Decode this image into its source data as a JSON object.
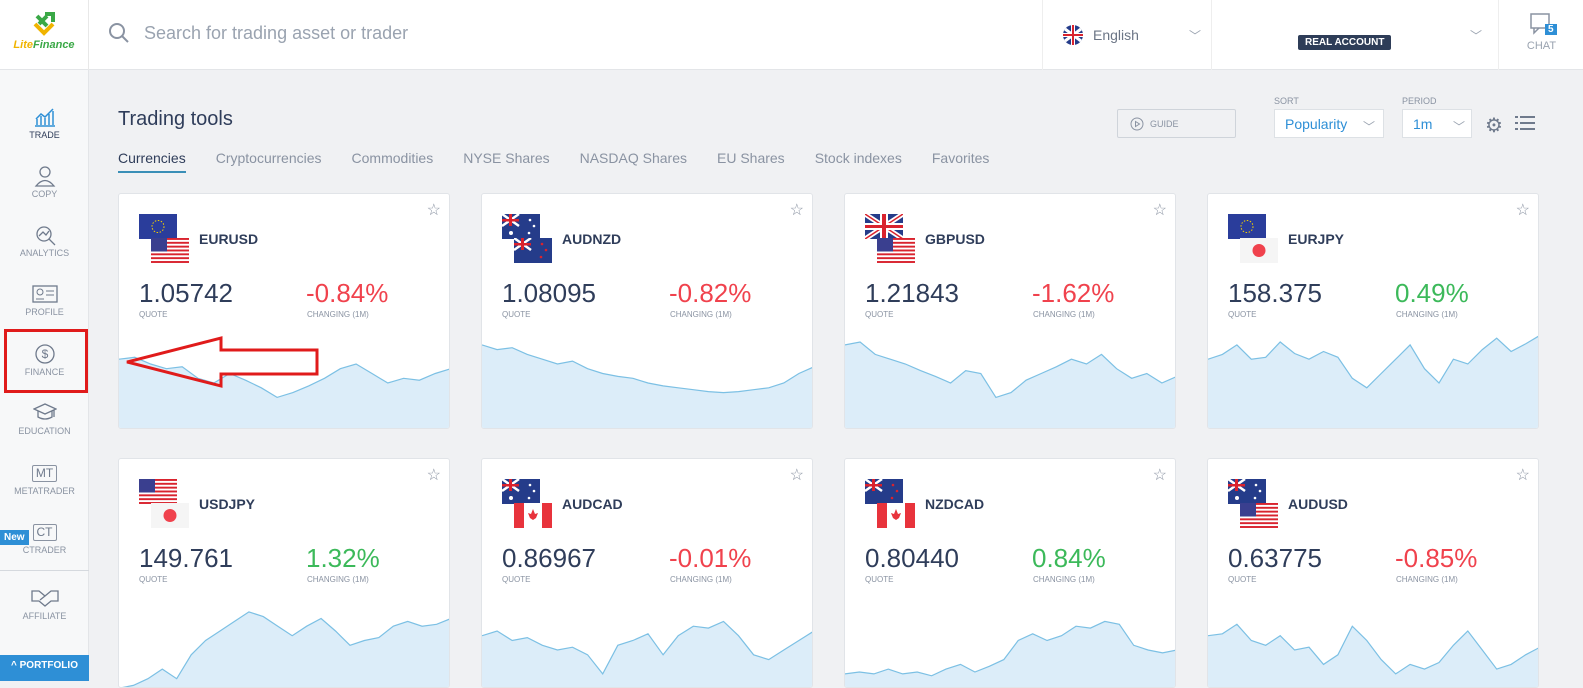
{
  "header": {
    "logo": "LiteFinance",
    "search_placeholder": "Search for trading asset or trader",
    "language": "English",
    "account_badge": "REAL ACCOUNT",
    "chat_label": "CHAT",
    "chat_count": "5"
  },
  "sidebar": {
    "items": [
      {
        "label": "TRADE",
        "icon": "chart-icon",
        "active": true
      },
      {
        "label": "COPY",
        "icon": "user-icon"
      },
      {
        "label": "ANALYTICS",
        "icon": "analytics-icon"
      },
      {
        "label": "PROFILE",
        "icon": "id-card-icon"
      },
      {
        "label": "FINANCE",
        "icon": "dollar-icon"
      },
      {
        "label": "EDUCATION",
        "icon": "graduation-cap-icon"
      },
      {
        "label": "METATRADER",
        "icon": "MT"
      },
      {
        "label": "CTRADER",
        "icon": "CT",
        "badge": "New"
      },
      {
        "label": "AFFILIATE",
        "icon": "handshake-icon"
      }
    ],
    "portfolio": "PORTFOLIO"
  },
  "main": {
    "title": "Trading tools",
    "tabs": [
      "Currencies",
      "Cryptocurrencies",
      "Commodities",
      "NYSE Shares",
      "NASDAQ Shares",
      "EU Shares",
      "Stock indexes",
      "Favorites"
    ],
    "guide": "GUIDE",
    "sort_label": "SORT",
    "sort_value": "Popularity",
    "period_label": "PERIOD",
    "period_value": "1m",
    "quote_label": "QUOTE",
    "change_label": "CHANGING (1M)"
  },
  "colors": {
    "up": "#3cb95a",
    "down": "#f0424d",
    "accent": "#2e8fd6",
    "highlight": "#e01b1b"
  },
  "cards": [
    {
      "symbol": "EURUSD",
      "quote": "1.05742",
      "change": "-0.84%",
      "dir": "down",
      "flags": [
        "eu",
        "us"
      ],
      "spark": [
        70,
        72,
        65,
        60,
        62,
        50,
        45,
        55,
        48,
        40,
        30,
        35,
        42,
        50,
        60,
        65,
        55,
        45,
        50,
        48,
        55,
        60
      ]
    },
    {
      "symbol": "AUDNZD",
      "quote": "1.08095",
      "change": "-0.82%",
      "dir": "down",
      "flags": [
        "au",
        "nz"
      ],
      "spark": [
        85,
        80,
        82,
        75,
        70,
        65,
        68,
        60,
        55,
        52,
        50,
        45,
        42,
        40,
        38,
        36,
        35,
        36,
        38,
        40,
        45,
        55,
        62
      ]
    },
    {
      "symbol": "GBPUSD",
      "quote": "1.21843",
      "change": "-1.62%",
      "dir": "down",
      "flags": [
        "gb",
        "us"
      ],
      "spark": [
        85,
        88,
        75,
        70,
        65,
        58,
        52,
        45,
        58,
        55,
        30,
        35,
        48,
        55,
        62,
        70,
        65,
        75,
        60,
        50,
        55,
        45,
        52
      ]
    },
    {
      "symbol": "EURJPY",
      "quote": "158.375",
      "change": "0.49%",
      "dir": "up",
      "flags": [
        "eu",
        "jp"
      ],
      "spark": [
        70,
        75,
        85,
        70,
        72,
        88,
        76,
        70,
        78,
        72,
        50,
        40,
        55,
        70,
        85,
        60,
        45,
        70,
        65,
        80,
        92,
        78,
        86,
        95
      ]
    },
    {
      "symbol": "USDJPY",
      "quote": "149.761",
      "change": "1.32%",
      "dir": "up",
      "flags": [
        "us",
        "jp"
      ],
      "spark": [
        5,
        8,
        15,
        25,
        15,
        40,
        55,
        65,
        75,
        85,
        80,
        70,
        60,
        70,
        78,
        65,
        50,
        55,
        58,
        70,
        75,
        70,
        72,
        78
      ]
    },
    {
      "symbol": "AUDCAD",
      "quote": "0.86967",
      "change": "-0.01%",
      "dir": "down",
      "flags": [
        "au",
        "ca"
      ],
      "spark": [
        60,
        65,
        55,
        58,
        50,
        45,
        48,
        40,
        20,
        50,
        55,
        62,
        40,
        60,
        70,
        68,
        75,
        60,
        40,
        35,
        45,
        55,
        65
      ]
    },
    {
      "symbol": "NZDCAD",
      "quote": "0.80440",
      "change": "0.84%",
      "dir": "up",
      "flags": [
        "nz",
        "ca"
      ],
      "spark": [
        20,
        22,
        20,
        25,
        20,
        22,
        18,
        25,
        30,
        22,
        28,
        35,
        55,
        62,
        55,
        60,
        70,
        68,
        75,
        72,
        50,
        45,
        42,
        45
      ]
    },
    {
      "symbol": "AUDUSD",
      "quote": "0.63775",
      "change": "-0.85%",
      "dir": "down",
      "flags": [
        "au",
        "us"
      ],
      "spark": [
        60,
        62,
        72,
        55,
        50,
        60,
        45,
        48,
        30,
        40,
        70,
        55,
        35,
        20,
        30,
        25,
        32,
        50,
        65,
        45,
        25,
        30,
        40,
        48
      ]
    }
  ]
}
